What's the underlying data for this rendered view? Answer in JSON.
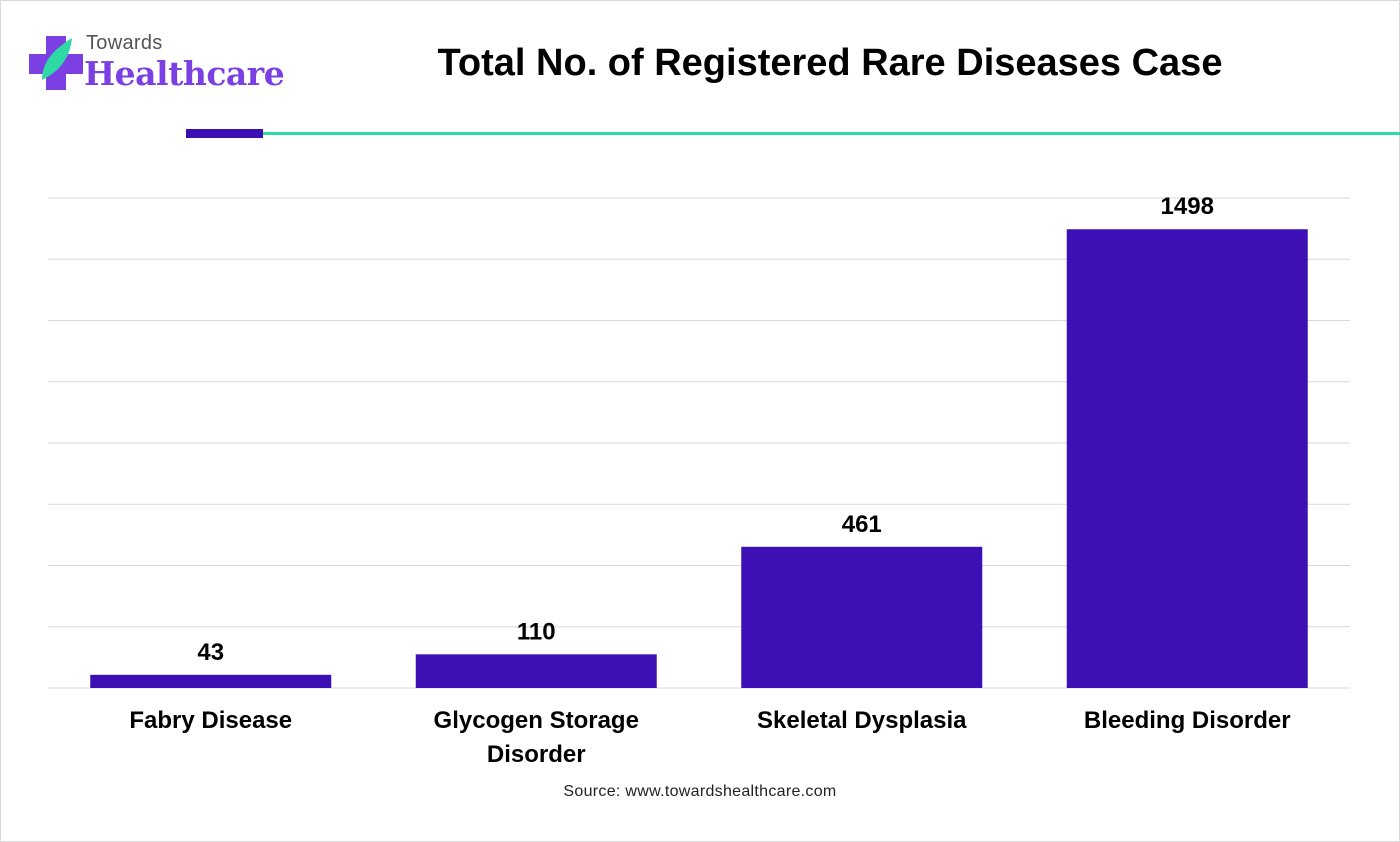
{
  "brand": {
    "top": "Towards",
    "main": "Healthcare"
  },
  "source": "Source: www.towardshealthcare.com",
  "colors": {
    "bar": "#3d10b6",
    "accent_green": "#2ed9a6",
    "accent_purple": "#3a0fb4",
    "grid": "#d9d9d9"
  },
  "chart_data": {
    "type": "bar",
    "title": "Total No. of Registered Rare Diseases Case",
    "xlabel": "",
    "ylabel": "",
    "categories": [
      [
        "Fabry Disease"
      ],
      [
        "Glycogen Storage",
        "Disorder"
      ],
      [
        "Skeletal Dysplasia"
      ],
      [
        "Bleeding Disorder"
      ]
    ],
    "values": [
      43,
      110,
      461,
      1498
    ],
    "data_labels": [
      "43",
      "110",
      "461",
      "1498"
    ],
    "ylim": [
      0,
      1600
    ],
    "grid": true,
    "legend": "none"
  }
}
